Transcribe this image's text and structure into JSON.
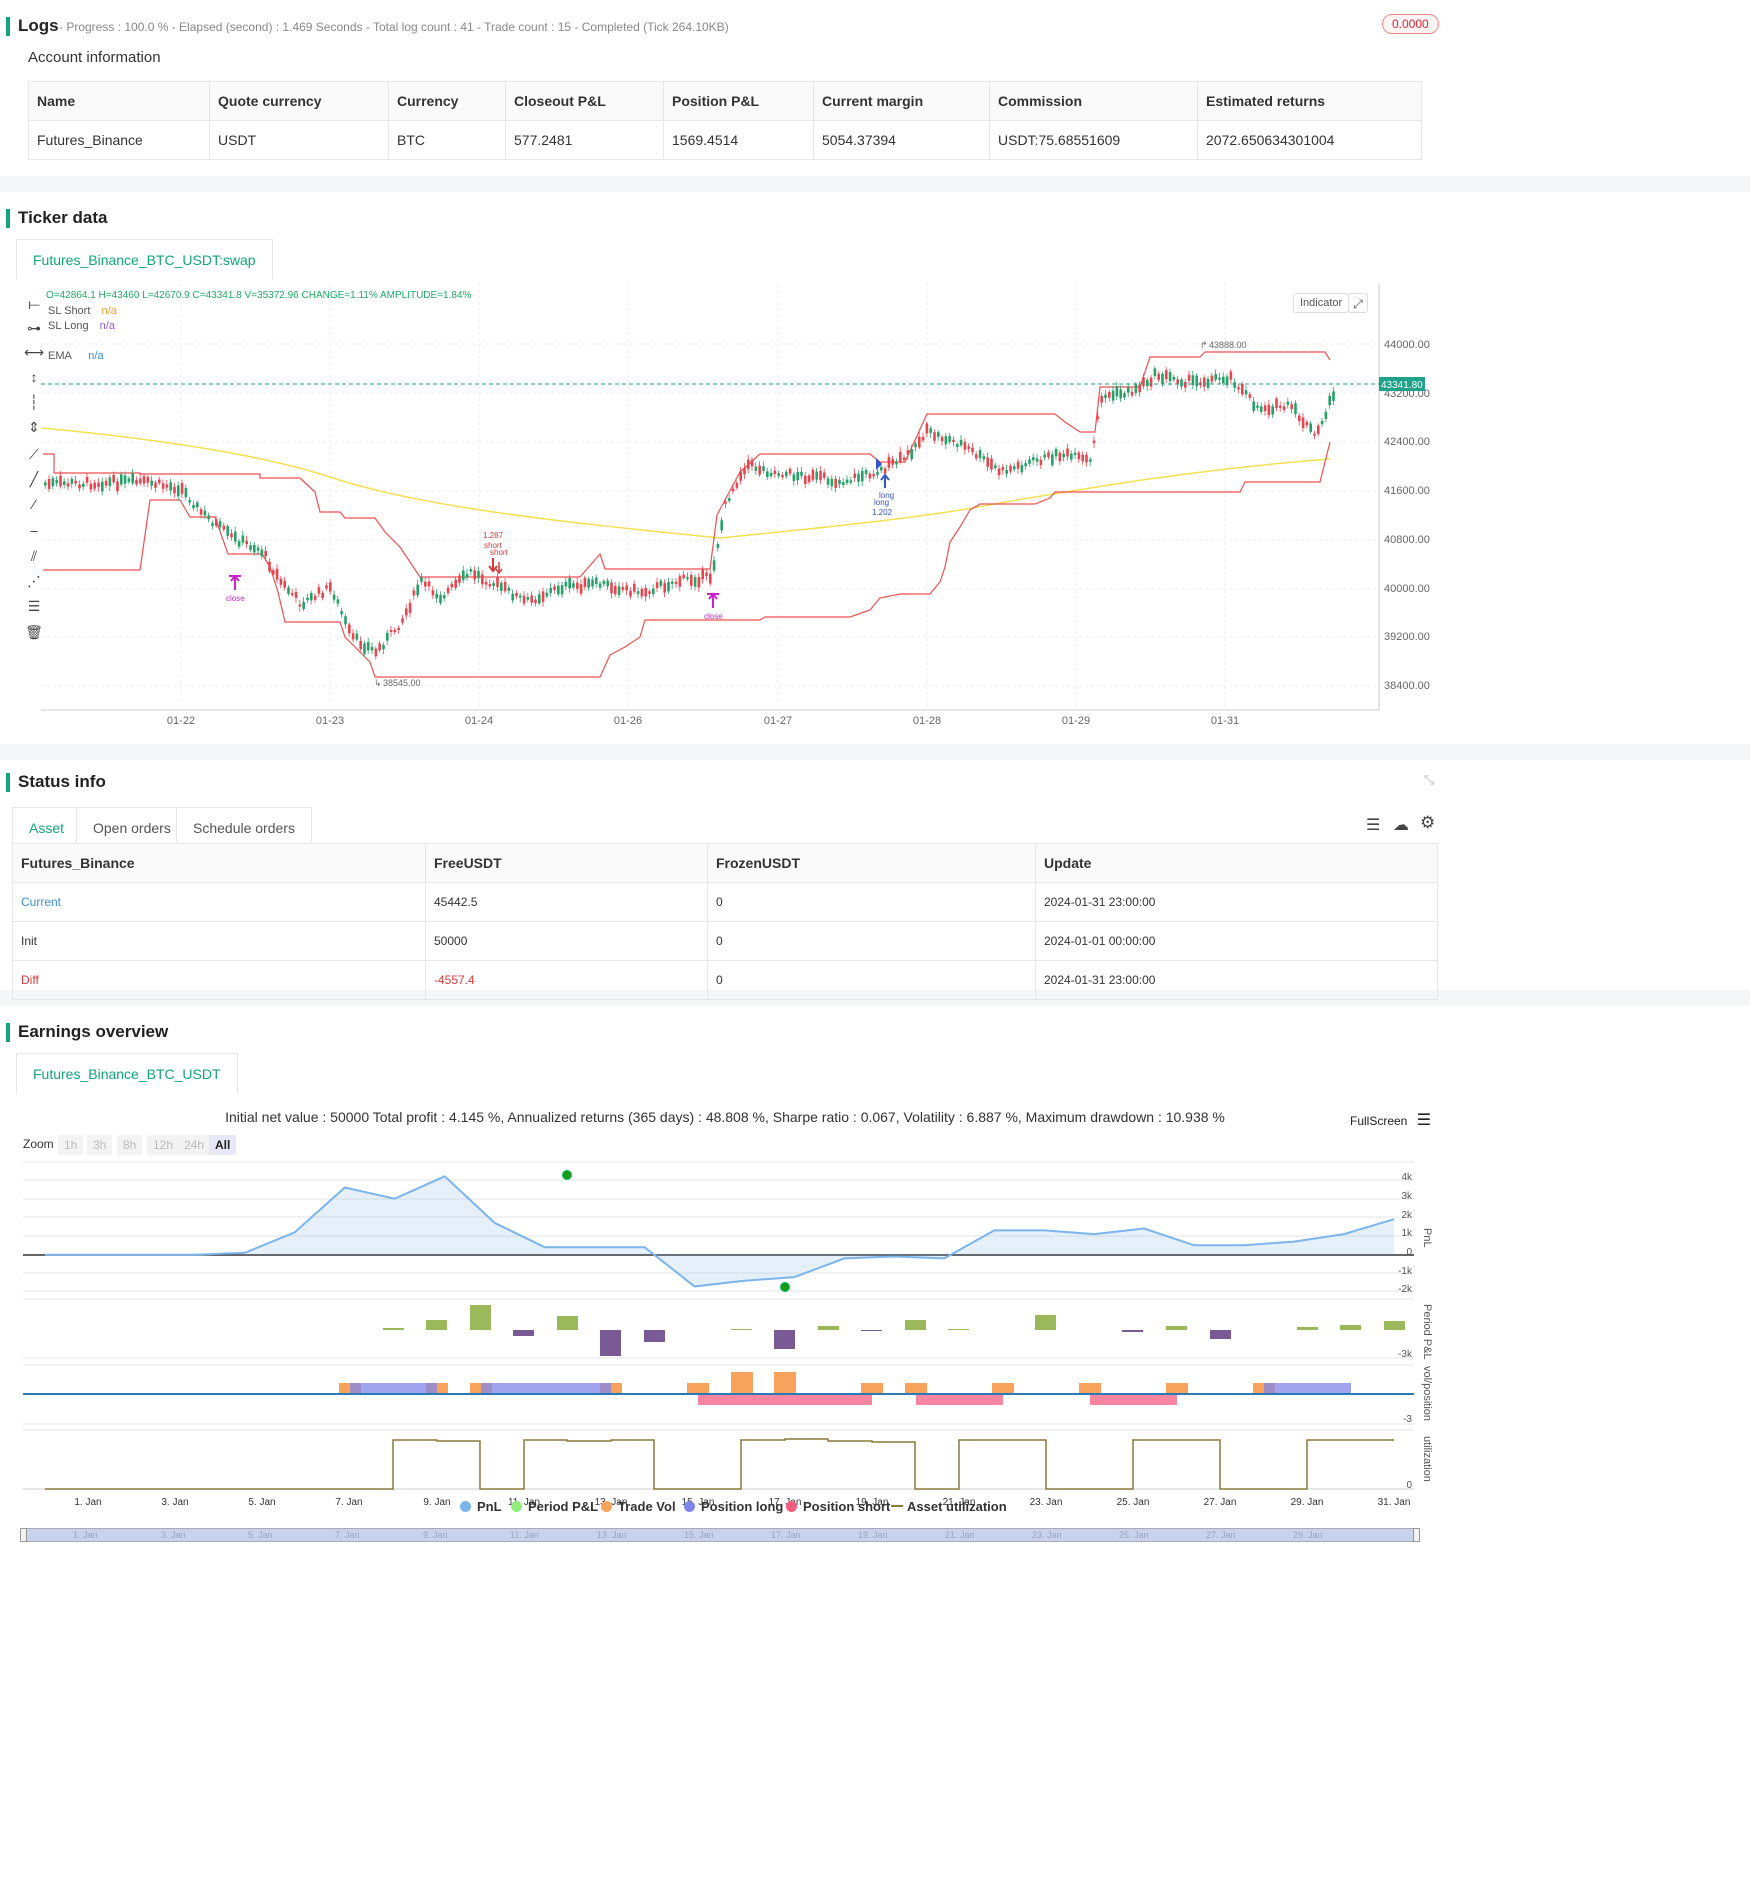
{
  "logs": {
    "title": "Logs",
    "status": "- Progress : 100.0 % - Elapsed (second) : 1.469  Seconds - Total log count : 41 - Trade count : 15 - Completed (Tick 264.10KB)",
    "badge": "0.0000"
  },
  "account": {
    "title": "Account information",
    "headers": [
      "Name",
      "Quote currency",
      "Currency",
      "Closeout P&L",
      "Position P&L",
      "Current margin",
      "Commission",
      "Estimated returns"
    ],
    "row": [
      "Futures_Binance",
      "USDT",
      "BTC",
      "577.2481",
      "1569.4514",
      "5054.37394",
      "USDT:75.68551609",
      "2072.650634301004"
    ]
  },
  "ticker": {
    "title": "Ticker data",
    "tab": "Futures_Binance_BTC_USDT:swap",
    "ohlc": "O=42864.1 H=43460 L=42670.9 C=43341.8 V=35372.96 CHANGE=1.11% AMPLITUDE=1.84%",
    "legend": [
      {
        "label": "SL Short",
        "value": "n/a",
        "color": "#f0a030"
      },
      {
        "label": "SL Long",
        "value": "n/a",
        "color": "#9a5bd0"
      },
      {
        "label": "EMA",
        "value": "n/a",
        "color": "#3b8fd8"
      }
    ],
    "indicator_btn": "Indicator",
    "price_tag": "43341.80",
    "y_ticks": [
      "44000.00",
      "43200.00",
      "42400.00",
      "41600.00",
      "40800.00",
      "40000.00",
      "39200.00",
      "38400.00"
    ],
    "x_ticks": [
      "01-22",
      "01-23",
      "01-24",
      "01-26",
      "01-27",
      "01-28",
      "01-29",
      "01-31"
    ],
    "high_label": "43888.00",
    "low_label": "38545.00",
    "markers": {
      "short_pct": "1.287",
      "short1": "short",
      "short2": "short",
      "long1": "long",
      "long2": "long",
      "long_pct": "1.202",
      "close1": "close",
      "close2": "close"
    }
  },
  "status": {
    "title": "Status info",
    "tabs": [
      "Asset",
      "Open orders",
      "Schedule orders"
    ],
    "headers": [
      "Futures_Binance",
      "FreeUSDT",
      "FrozenUSDT",
      "Update"
    ],
    "rows": [
      [
        "Current",
        "45442.5",
        "0",
        "2024-01-31 23:00:00"
      ],
      [
        "Init",
        "50000",
        "0",
        "2024-01-01 00:00:00"
      ],
      [
        "Diff",
        "-4557.4",
        "0",
        "2024-01-31 23:00:00"
      ]
    ]
  },
  "earnings": {
    "title": "Earnings overview",
    "tab": "Futures_Binance_BTC_USDT",
    "summary": "Initial net value : 50000 Total profit : 4.145 %, Annualized returns (365 days) : 48.808 %, Sharpe ratio : 0.067, Volatility : 6.887 %, Maximum drawdown : 10.938 %",
    "fullscreen": "FullScreen",
    "zoom_label": "Zoom",
    "zoom_options": [
      "1h",
      "3h",
      "8h",
      "12h",
      "24h",
      "All"
    ],
    "pnl_ticks": [
      "4k",
      "3k",
      "2k",
      "1k",
      "0",
      "-1k",
      "-2k"
    ],
    "axis_titles": [
      "PnL",
      "Period P&L",
      "vol/position",
      "utilization"
    ],
    "period_tick": "-3k",
    "vol_tick": "-3",
    "util_tick": "0",
    "x_ticks": [
      "1. Jan",
      "3. Jan",
      "5. Jan",
      "7. Jan",
      "9. Jan",
      "11. Jan",
      "13. Jan",
      "15. Jan",
      "17. Jan",
      "19. Jan",
      "21. Jan",
      "23. Jan",
      "25. Jan",
      "27. Jan",
      "29. Jan",
      "31. Jan"
    ],
    "legend": [
      {
        "label": "PnL",
        "color": "#7cb5ec"
      },
      {
        "label": "Period P&L",
        "color": "#90ed7d"
      },
      {
        "label": "Trade Vol",
        "color": "#f7a35c"
      },
      {
        "label": "Position long",
        "color": "#8085e9"
      },
      {
        "label": "Position short",
        "color": "#f15c80"
      },
      {
        "label": "Asset utilization",
        "color": "#8a7a3a"
      }
    ]
  },
  "chart_data": [
    {
      "type": "line",
      "title": "",
      "x": [
        "1. Jan",
        "3. Jan",
        "5. Jan",
        "7. Jan",
        "8. Jan",
        "9. Jan",
        "10. Jan",
        "11. Jan",
        "12. Jan",
        "13. Jan",
        "14. Jan",
        "15. Jan",
        "16. Jan",
        "17. Jan",
        "18. Jan",
        "19. Jan",
        "20. Jan",
        "21. Jan",
        "22. Jan",
        "23. Jan",
        "24. Jan",
        "25. Jan",
        "26. Jan",
        "27. Jan",
        "28. Jan",
        "29. Jan",
        "30. Jan",
        "31. Jan"
      ],
      "series": [
        {
          "name": "PnL",
          "values": [
            0,
            0,
            0,
            0,
            100,
            1200,
            3600,
            3000,
            4200,
            1700,
            400,
            400,
            400,
            -1700,
            -1400,
            -1200,
            -200,
            -100,
            -200,
            1300,
            1300,
            1100,
            1400,
            500,
            500,
            700,
            1100,
            1900
          ]
        }
      ],
      "ylim": [
        -2000,
        4000
      ],
      "ylabel": "PnL"
    }
  ]
}
